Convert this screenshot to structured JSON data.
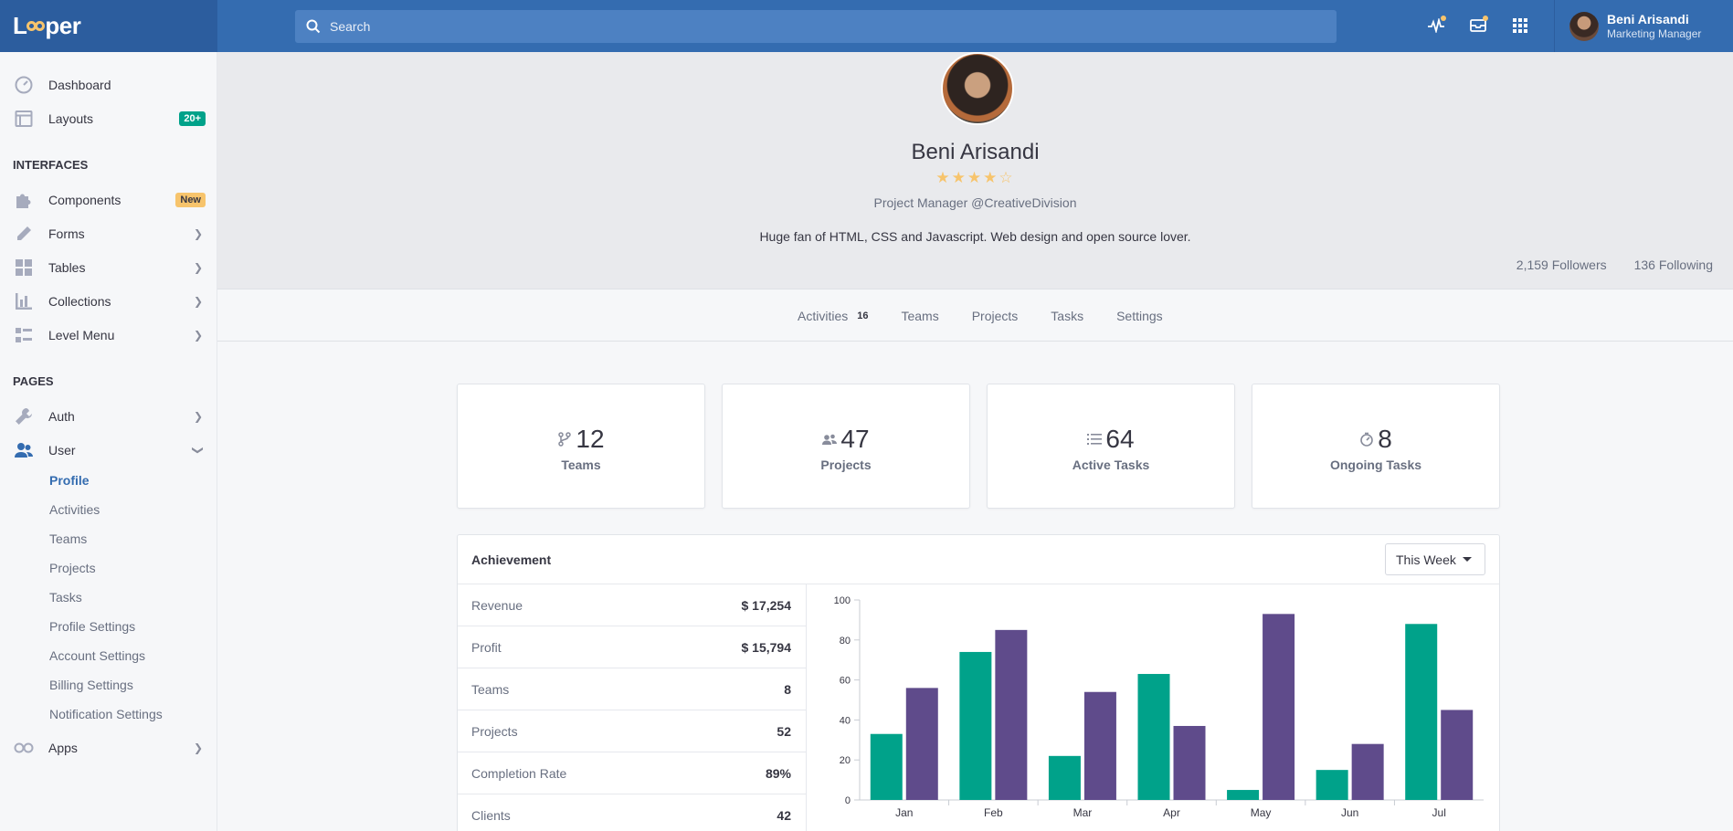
{
  "header": {
    "brand": "Looper",
    "brand_start": "L",
    "brand_end": "per",
    "search_placeholder": "Search",
    "user_name": "Beni Arisandi",
    "user_role": "Marketing Manager",
    "accent": "#f7c46c",
    "icons": [
      "pulse-icon",
      "inbox-icon",
      "apps-grid-icon"
    ]
  },
  "sidebar": {
    "dashboard": "Dashboard",
    "layouts": "Layouts",
    "layouts_badge": "20+",
    "interfaces_head": "INTERFACES",
    "components": "Components",
    "components_badge": "New",
    "forms": "Forms",
    "tables": "Tables",
    "collections": "Collections",
    "level_menu": "Level Menu",
    "pages_head": "PAGES",
    "auth": "Auth",
    "user": "User",
    "sub": [
      "Profile",
      "Activities",
      "Teams",
      "Projects",
      "Tasks",
      "Profile Settings",
      "Account Settings",
      "Billing Settings",
      "Notification Settings"
    ],
    "apps": "Apps"
  },
  "profile": {
    "name": "Beni Arisandi",
    "rating": 4,
    "rating_max": 5,
    "title": "Project Manager @CreativeDivision",
    "bio": "Huge fan of HTML, CSS and Javascript. Web design and open source lover.",
    "followers": "2,159 Followers",
    "following": "136 Following"
  },
  "tabs": [
    {
      "label": "Activities",
      "count": "16"
    },
    {
      "label": "Teams"
    },
    {
      "label": "Projects"
    },
    {
      "label": "Tasks"
    },
    {
      "label": "Settings"
    }
  ],
  "stats": [
    {
      "value": "12",
      "label": "Teams",
      "icon": "branch-icon"
    },
    {
      "value": "47",
      "label": "Projects",
      "icon": "people-icon"
    },
    {
      "value": "64",
      "label": "Active Tasks",
      "icon": "list-icon"
    },
    {
      "value": "8",
      "label": "Ongoing Tasks",
      "icon": "timer-icon"
    }
  ],
  "achievement": {
    "title": "Achievement",
    "period": "This Week",
    "metrics": [
      {
        "label": "Revenue",
        "value": "$ 17,254"
      },
      {
        "label": "Profit",
        "value": "$ 15,794"
      },
      {
        "label": "Teams",
        "value": "8"
      },
      {
        "label": "Projects",
        "value": "52"
      },
      {
        "label": "Completion Rate",
        "value": "89%"
      },
      {
        "label": "Clients",
        "value": "42"
      }
    ]
  },
  "chart_data": {
    "type": "bar",
    "categories": [
      "Jan",
      "Feb",
      "Mar",
      "Apr",
      "May",
      "Jun",
      "Jul"
    ],
    "series": [
      {
        "values": [
          33,
          74,
          22,
          63,
          5,
          15,
          88
        ],
        "color": "#00a28a"
      },
      {
        "values": [
          56,
          85,
          54,
          37,
          93,
          28,
          45
        ],
        "color": "#5f4b8b"
      }
    ],
    "ylim": [
      0,
      100
    ],
    "yticks": [
      0,
      20,
      40,
      60,
      80,
      100
    ],
    "grid": false
  }
}
